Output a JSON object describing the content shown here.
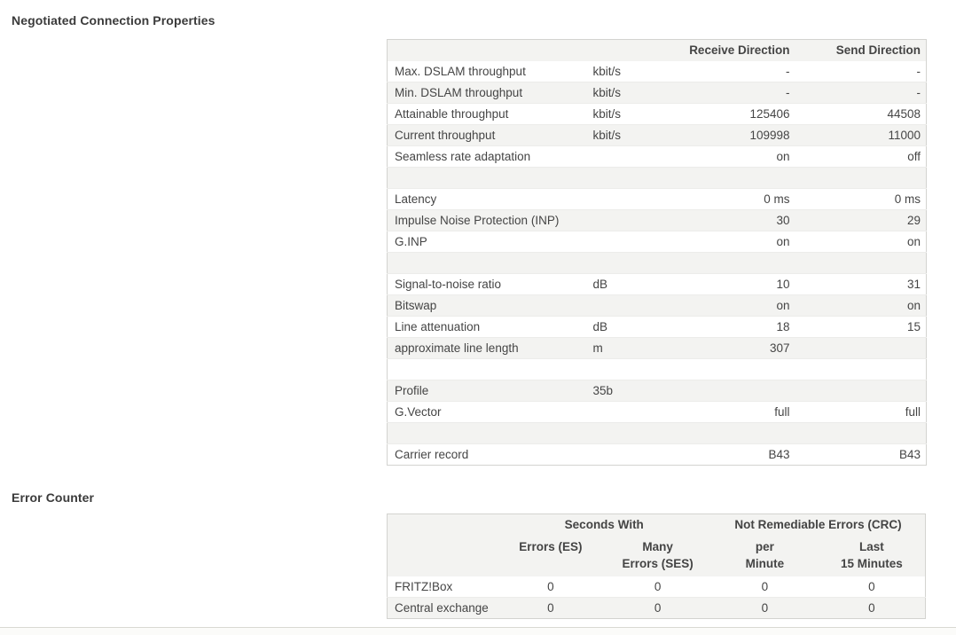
{
  "colors": {
    "text": "#454545",
    "heading": "#3b3b3b",
    "stripe": "#f3f3f1",
    "table_border": "#d3d3d0",
    "divider": "#d9d9d3",
    "background": "#ffffff"
  },
  "section1": {
    "heading": "Negotiated Connection Properties",
    "table": {
      "col_headers": {
        "receive": "Receive Direction",
        "send": "Send Direction"
      },
      "rows": [
        {
          "label": "Max. DSLAM throughput",
          "unit": "kbit/s",
          "receive": "-",
          "send": "-"
        },
        {
          "label": "Min. DSLAM throughput",
          "unit": "kbit/s",
          "receive": "-",
          "send": "-"
        },
        {
          "label": "Attainable throughput",
          "unit": "kbit/s",
          "receive": "125406",
          "send": "44508"
        },
        {
          "label": "Current throughput",
          "unit": "kbit/s",
          "receive": "109998",
          "send": "11000"
        },
        {
          "label": "Seamless rate adaptation",
          "unit": "",
          "receive": "on",
          "send": "off"
        },
        {
          "label": "",
          "unit": "",
          "receive": "",
          "send": ""
        },
        {
          "label": "Latency",
          "unit": "",
          "receive": "0 ms",
          "send": "0 ms"
        },
        {
          "label": "Impulse Noise Protection (INP)",
          "unit": "",
          "receive": "30",
          "send": "29"
        },
        {
          "label": "G.INP",
          "unit": "",
          "receive": "on",
          "send": "on"
        },
        {
          "label": "",
          "unit": "",
          "receive": "",
          "send": ""
        },
        {
          "label": "Signal-to-noise ratio",
          "unit": "dB",
          "receive": "10",
          "send": "31"
        },
        {
          "label": "Bitswap",
          "unit": "",
          "receive": "on",
          "send": "on"
        },
        {
          "label": "Line attenuation",
          "unit": "dB",
          "receive": "18",
          "send": "15"
        },
        {
          "label": "approximate line length",
          "unit": "m",
          "receive": "307",
          "send": ""
        },
        {
          "label": "",
          "unit": "",
          "receive": "",
          "send": ""
        },
        {
          "label": "Profile",
          "unit": "35b",
          "receive": "",
          "send": ""
        },
        {
          "label": "G.Vector",
          "unit": "",
          "receive": "full",
          "send": "full"
        },
        {
          "label": "",
          "unit": "",
          "receive": "",
          "send": ""
        },
        {
          "label": "Carrier record",
          "unit": "",
          "receive": "B43",
          "send": "B43"
        }
      ]
    }
  },
  "section2": {
    "heading": "Error Counter",
    "table": {
      "group_headers": {
        "seconds_with": "Seconds With",
        "crc": "Not Remediable Errors (CRC)"
      },
      "col_headers": [
        {
          "line1": "Errors (ES)",
          "line2": ""
        },
        {
          "line1": "Many",
          "line2": "Errors (SES)"
        },
        {
          "line1": "per",
          "line2": "Minute"
        },
        {
          "line1": "Last",
          "line2": "15 Minutes"
        }
      ],
      "rows": [
        {
          "label": "FRITZ!Box",
          "values": [
            "0",
            "0",
            "0",
            "0"
          ]
        },
        {
          "label": "Central exchange",
          "values": [
            "0",
            "0",
            "0",
            "0"
          ]
        }
      ]
    }
  }
}
